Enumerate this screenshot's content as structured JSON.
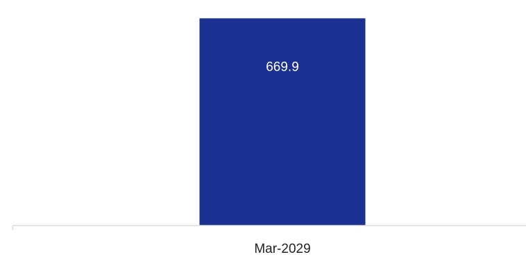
{
  "chart_data": {
    "type": "bar",
    "categories": [
      "Mar-2029"
    ],
    "values": [
      669.9
    ],
    "value_labels": [
      "669.9"
    ],
    "ylim": [
      0,
      700
    ],
    "grid": false,
    "legend": "none",
    "colors": {
      "bar": "#1b3192",
      "bar_label": "#ffffff",
      "axis": "#d9d9d9",
      "tick_label": "#222222"
    }
  }
}
